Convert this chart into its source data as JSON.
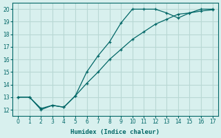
{
  "xlabel": "Humidex (Indice chaleur)",
  "bg_color": "#d8f0ee",
  "grid_color": "#b8d8d4",
  "line_color": "#006666",
  "xlim": [
    -0.5,
    17.5
  ],
  "ylim": [
    11.5,
    20.5
  ],
  "xticks": [
    0,
    1,
    2,
    3,
    4,
    5,
    6,
    7,
    8,
    9,
    10,
    11,
    12,
    13,
    14,
    15,
    16,
    17
  ],
  "yticks": [
    12,
    13,
    14,
    15,
    16,
    17,
    18,
    19,
    20
  ],
  "curve1_x": [
    0,
    1,
    2,
    3,
    4,
    5,
    6,
    7,
    8,
    9,
    10,
    11,
    12,
    13,
    14,
    15,
    16,
    17
  ],
  "curve1_y": [
    13,
    13,
    12.1,
    12.35,
    12.2,
    13.1,
    14.1,
    15.0,
    16.0,
    16.8,
    17.6,
    18.2,
    18.8,
    19.2,
    19.6,
    19.7,
    19.85,
    19.95
  ],
  "curve2_x": [
    0,
    1,
    2,
    3,
    4,
    5,
    6,
    7,
    8,
    9,
    10,
    11,
    12,
    13,
    14,
    15,
    16,
    17
  ],
  "curve2_y": [
    13,
    13,
    12.0,
    12.35,
    12.2,
    13.1,
    15.0,
    16.3,
    17.4,
    18.9,
    20.0,
    20.0,
    20.0,
    19.7,
    19.3,
    19.7,
    20.0,
    20.0
  ]
}
